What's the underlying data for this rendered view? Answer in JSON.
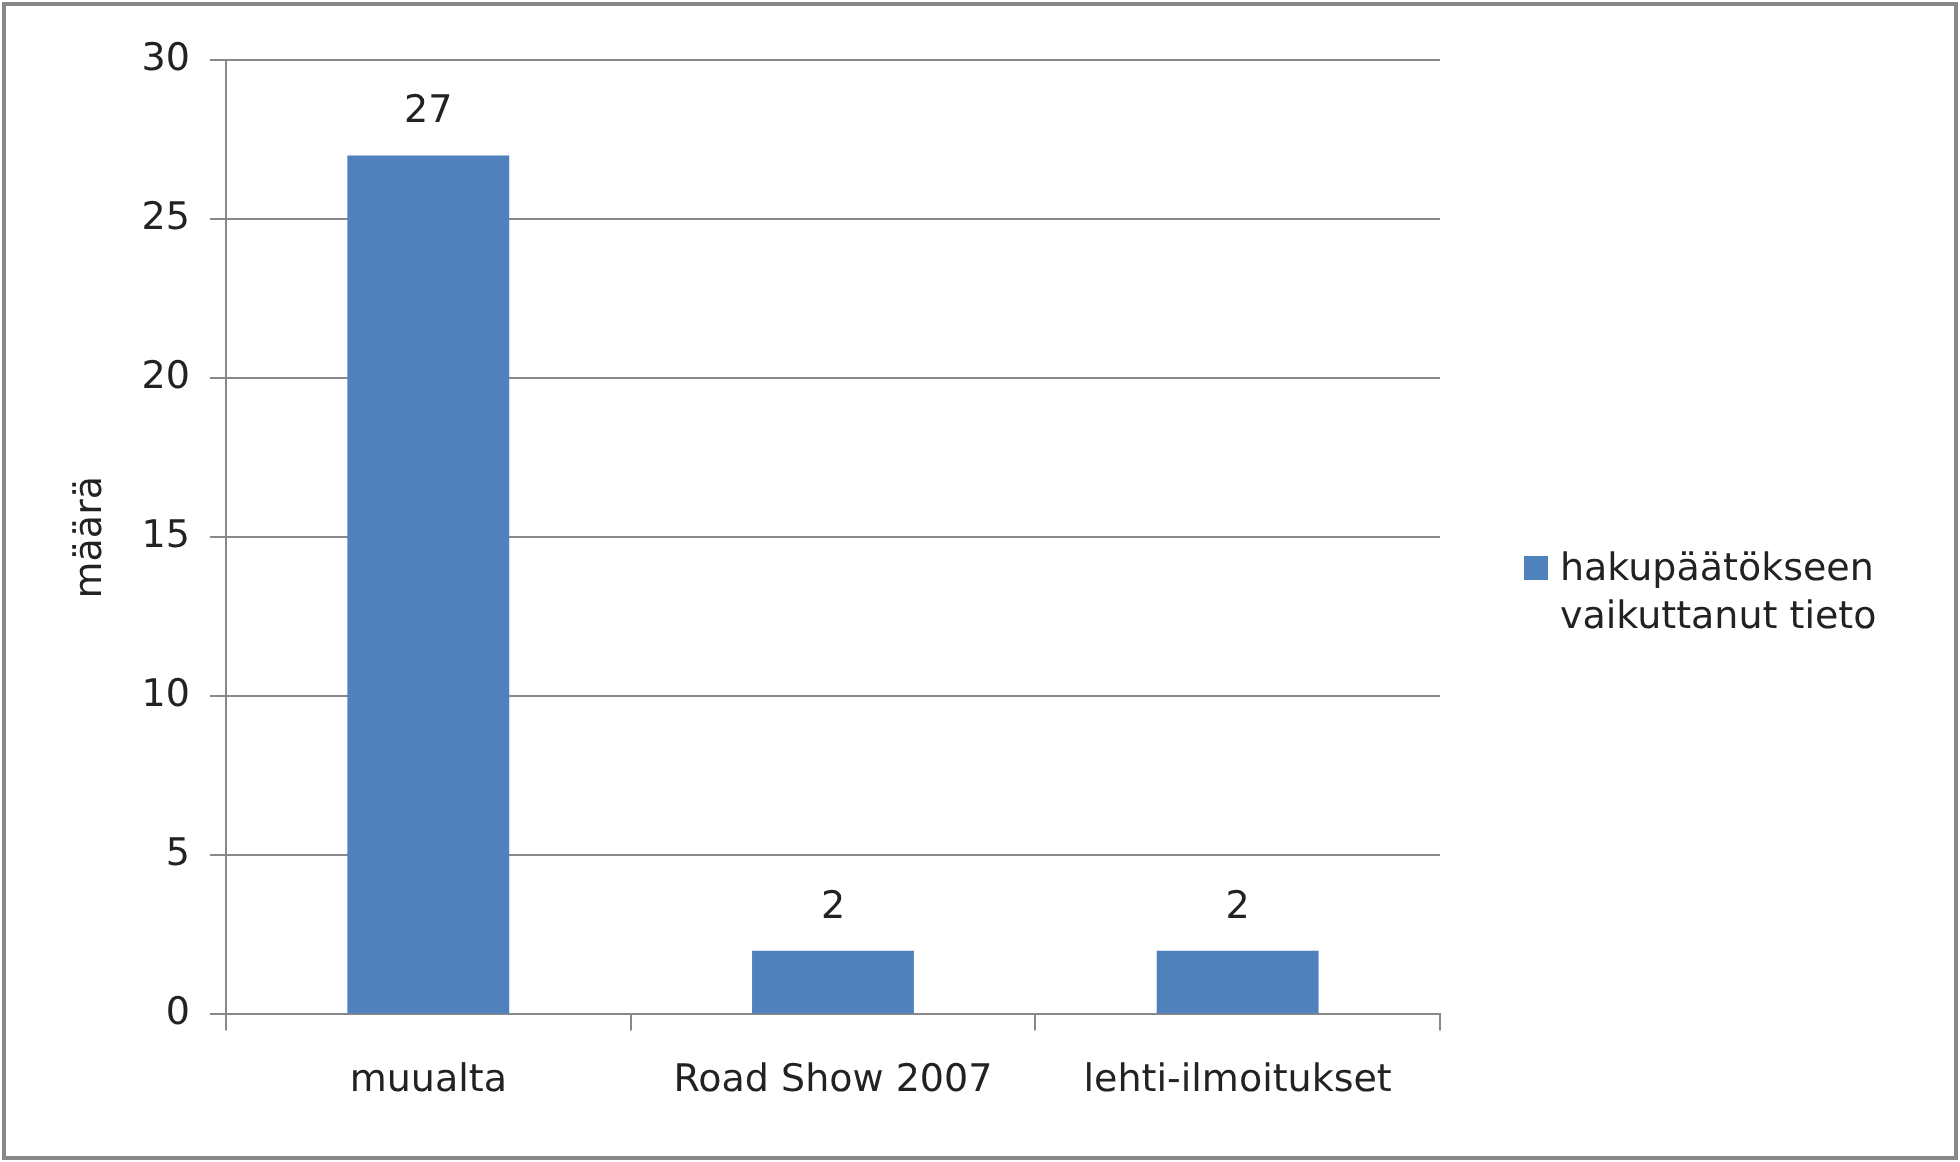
{
  "chart_data": {
    "type": "bar",
    "categories": [
      "muualta",
      "Road Show 2007",
      "lehti-ilmoitukset"
    ],
    "series": [
      {
        "name": "hakupäätökseen vaikuttanut tieto",
        "color": "#4f81bd",
        "values": [
          27,
          2,
          2
        ]
      }
    ],
    "ylabel": "määrä",
    "ylim": [
      0,
      30
    ],
    "yticks": [
      0,
      5,
      10,
      15,
      20,
      25,
      30
    ],
    "grid": "y",
    "legend": "right",
    "data_labels": true
  }
}
